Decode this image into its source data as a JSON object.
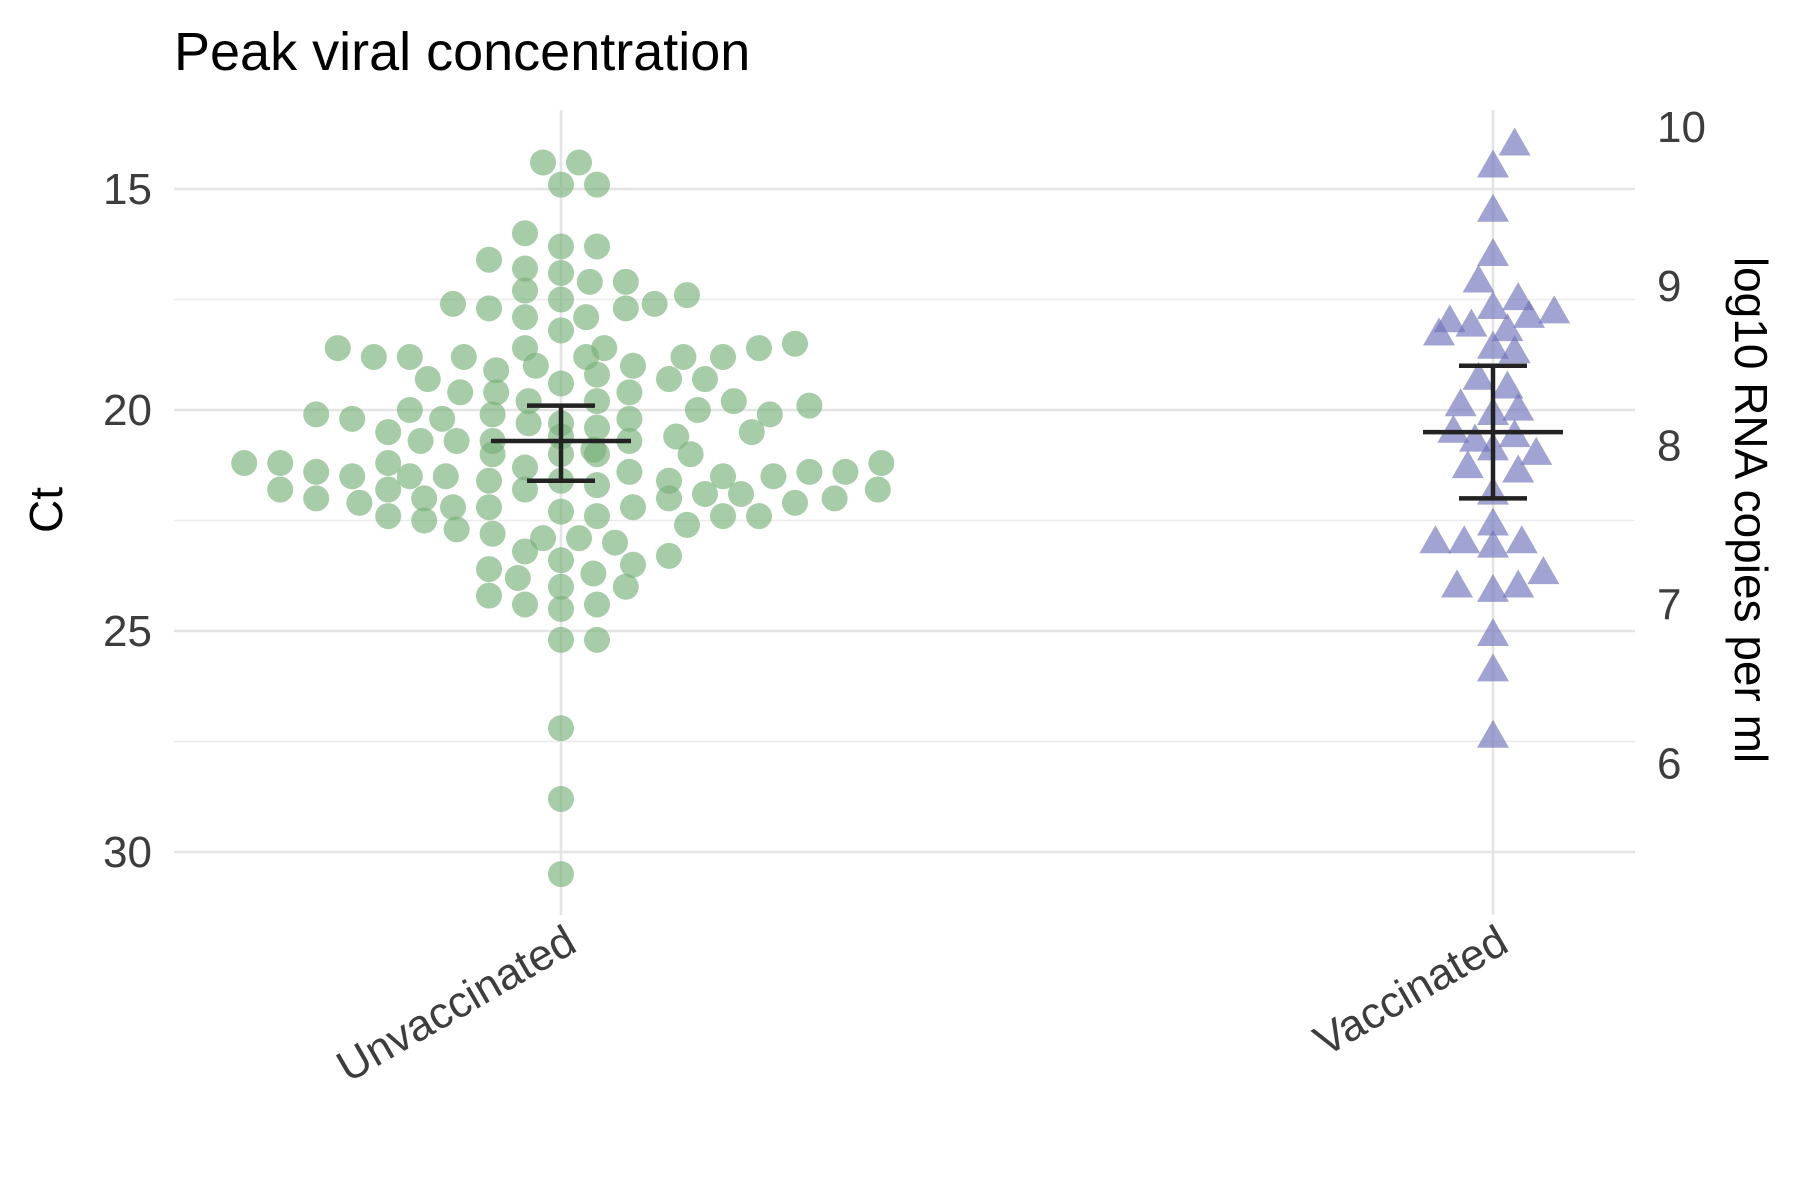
{
  "chart_data": {
    "type": "scatter",
    "title": "Peak viral concentration",
    "ylabel": "Ct",
    "y2label": "log10 RNA copies per ml",
    "categories": [
      "Unvaccinated",
      "Vaccinated"
    ],
    "ylim": [
      31.2,
      13.5
    ],
    "y_reversed": true,
    "yticks": [
      15,
      20,
      25,
      30
    ],
    "y2ticks": [
      10,
      9,
      8,
      7,
      6
    ],
    "y2_ct_equivalent": {
      "10": 13.6,
      "9": 17.2,
      "8": 20.8,
      "7": 24.4,
      "6": 28.0
    },
    "grid": true,
    "series": [
      {
        "category": "Unvaccinated",
        "marker": "circle",
        "color": "#78b17a",
        "points": [
          {
            "dx": -0.5,
            "ct": 14.4
          },
          {
            "dx": 0.5,
            "ct": 14.4
          },
          {
            "dx": 0,
            "ct": 14.9
          },
          {
            "dx": 1,
            "ct": 14.9
          },
          {
            "dx": -1,
            "ct": 16.0
          },
          {
            "dx": 0,
            "ct": 16.3
          },
          {
            "dx": 1,
            "ct": 16.3
          },
          {
            "dx": -2,
            "ct": 16.6
          },
          {
            "dx": -1,
            "ct": 16.8
          },
          {
            "dx": 0,
            "ct": 16.9
          },
          {
            "dx": 0.8,
            "ct": 17.1
          },
          {
            "dx": 1.8,
            "ct": 17.1
          },
          {
            "dx": -1,
            "ct": 17.3
          },
          {
            "dx": 3.5,
            "ct": 17.4
          },
          {
            "dx": 0,
            "ct": 17.5
          },
          {
            "dx": -3,
            "ct": 17.6
          },
          {
            "dx": 2.6,
            "ct": 17.6
          },
          {
            "dx": -2,
            "ct": 17.7
          },
          {
            "dx": 1.8,
            "ct": 17.7
          },
          {
            "dx": -1,
            "ct": 17.9
          },
          {
            "dx": 0.7,
            "ct": 17.9
          },
          {
            "dx": 0,
            "ct": 18.2
          },
          {
            "dx": 6.5,
            "ct": 18.5
          },
          {
            "dx": -6.2,
            "ct": 18.6
          },
          {
            "dx": -1,
            "ct": 18.6
          },
          {
            "dx": 1.2,
            "ct": 18.6
          },
          {
            "dx": 5.5,
            "ct": 18.6
          },
          {
            "dx": -5.2,
            "ct": 18.8
          },
          {
            "dx": -4.2,
            "ct": 18.8
          },
          {
            "dx": -2.7,
            "ct": 18.8
          },
          {
            "dx": 0.7,
            "ct": 18.8
          },
          {
            "dx": 3.4,
            "ct": 18.8
          },
          {
            "dx": 4.5,
            "ct": 18.8
          },
          {
            "dx": -0.7,
            "ct": 19.0
          },
          {
            "dx": 2.0,
            "ct": 19.0
          },
          {
            "dx": -1.8,
            "ct": 19.1
          },
          {
            "dx": 1.0,
            "ct": 19.2
          },
          {
            "dx": -3.7,
            "ct": 19.3
          },
          {
            "dx": 3.0,
            "ct": 19.3
          },
          {
            "dx": 4.0,
            "ct": 19.3
          },
          {
            "dx": 0,
            "ct": 19.4
          },
          {
            "dx": -2.8,
            "ct": 19.6
          },
          {
            "dx": -1.8,
            "ct": 19.6
          },
          {
            "dx": 1.9,
            "ct": 19.6
          },
          {
            "dx": -0.9,
            "ct": 19.8
          },
          {
            "dx": 1.0,
            "ct": 19.8
          },
          {
            "dx": 4.8,
            "ct": 19.8
          },
          {
            "dx": 6.9,
            "ct": 19.9
          },
          {
            "dx": 3.8,
            "ct": 20.0
          },
          {
            "dx": -4.2,
            "ct": 20.0
          },
          {
            "dx": -6.8,
            "ct": 20.1
          },
          {
            "dx": 5.8,
            "ct": 20.1
          },
          {
            "dx": -1.9,
            "ct": 20.1
          },
          {
            "dx": -5.8,
            "ct": 20.2
          },
          {
            "dx": -3.3,
            "ct": 20.2
          },
          {
            "dx": 1.9,
            "ct": 20.2
          },
          {
            "dx": -0.9,
            "ct": 20.3
          },
          {
            "dx": 0,
            "ct": 20.3
          },
          {
            "dx": 1.0,
            "ct": 20.4
          },
          {
            "dx": -4.8,
            "ct": 20.5
          },
          {
            "dx": 5.3,
            "ct": 20.5
          },
          {
            "dx": 3.2,
            "ct": 20.6
          },
          {
            "dx": 0,
            "ct": 20.6
          },
          {
            "dx": -3.9,
            "ct": 20.7
          },
          {
            "dx": -2.9,
            "ct": 20.7
          },
          {
            "dx": -1.9,
            "ct": 20.7
          },
          {
            "dx": 1.9,
            "ct": 20.7
          },
          {
            "dx": 0.9,
            "ct": 20.9
          },
          {
            "dx": -1.9,
            "ct": 21.0
          },
          {
            "dx": 0,
            "ct": 21.0
          },
          {
            "dx": 1.0,
            "ct": 21.0
          },
          {
            "dx": 3.6,
            "ct": 21.0
          },
          {
            "dx": -8.8,
            "ct": 21.2
          },
          {
            "dx": -7.8,
            "ct": 21.2
          },
          {
            "dx": -4.8,
            "ct": 21.2
          },
          {
            "dx": 8.9,
            "ct": 21.2
          },
          {
            "dx": -1.0,
            "ct": 21.3
          },
          {
            "dx": 1.9,
            "ct": 21.4
          },
          {
            "dx": -6.8,
            "ct": 21.4
          },
          {
            "dx": 7.9,
            "ct": 21.4
          },
          {
            "dx": 6.9,
            "ct": 21.4
          },
          {
            "dx": 5.9,
            "ct": 21.5
          },
          {
            "dx": 4.5,
            "ct": 21.5
          },
          {
            "dx": -5.8,
            "ct": 21.5
          },
          {
            "dx": -4.2,
            "ct": 21.5
          },
          {
            "dx": -3.2,
            "ct": 21.5
          },
          {
            "dx": -2.0,
            "ct": 21.6
          },
          {
            "dx": 0,
            "ct": 21.6
          },
          {
            "dx": 3.0,
            "ct": 21.6
          },
          {
            "dx": 1.0,
            "ct": 21.7
          },
          {
            "dx": -7.8,
            "ct": 21.8
          },
          {
            "dx": 8.8,
            "ct": 21.8
          },
          {
            "dx": -4.8,
            "ct": 21.8
          },
          {
            "dx": -1.0,
            "ct": 21.8
          },
          {
            "dx": 4.0,
            "ct": 21.9
          },
          {
            "dx": 5.0,
            "ct": 21.9
          },
          {
            "dx": -6.8,
            "ct": 22.0
          },
          {
            "dx": 7.6,
            "ct": 22.0
          },
          {
            "dx": -3.8,
            "ct": 22.0
          },
          {
            "dx": 3.0,
            "ct": 22.0
          },
          {
            "dx": 6.5,
            "ct": 22.1
          },
          {
            "dx": -5.6,
            "ct": 22.1
          },
          {
            "dx": -3.0,
            "ct": 22.2
          },
          {
            "dx": 2.0,
            "ct": 22.2
          },
          {
            "dx": -2.0,
            "ct": 22.2
          },
          {
            "dx": 0,
            "ct": 22.3
          },
          {
            "dx": 1.0,
            "ct": 22.4
          },
          {
            "dx": 4.5,
            "ct": 22.4
          },
          {
            "dx": 5.5,
            "ct": 22.4
          },
          {
            "dx": -4.8,
            "ct": 22.4
          },
          {
            "dx": -3.8,
            "ct": 22.5
          },
          {
            "dx": 3.5,
            "ct": 22.6
          },
          {
            "dx": -2.9,
            "ct": 22.7
          },
          {
            "dx": -1.9,
            "ct": 22.8
          },
          {
            "dx": 0.5,
            "ct": 22.9
          },
          {
            "dx": -0.5,
            "ct": 22.9
          },
          {
            "dx": 1.5,
            "ct": 23.0
          },
          {
            "dx": -1.0,
            "ct": 23.2
          },
          {
            "dx": 3.0,
            "ct": 23.3
          },
          {
            "dx": 0,
            "ct": 23.4
          },
          {
            "dx": 2.0,
            "ct": 23.5
          },
          {
            "dx": -2.0,
            "ct": 23.6
          },
          {
            "dx": 0.9,
            "ct": 23.7
          },
          {
            "dx": -1.2,
            "ct": 23.8
          },
          {
            "dx": 0,
            "ct": 24.0
          },
          {
            "dx": 1.8,
            "ct": 24.0
          },
          {
            "dx": -2.0,
            "ct": 24.2
          },
          {
            "dx": -1.0,
            "ct": 24.4
          },
          {
            "dx": 1.0,
            "ct": 24.4
          },
          {
            "dx": 0,
            "ct": 24.5
          },
          {
            "dx": 0,
            "ct": 25.2
          },
          {
            "dx": 1.0,
            "ct": 25.2
          },
          {
            "dx": 0,
            "ct": 27.2
          },
          {
            "dx": 0,
            "ct": 28.8
          },
          {
            "dx": 0,
            "ct": 30.5
          }
        ],
        "summary": {
          "center": 20.7,
          "low": 19.9,
          "high": 21.6
        }
      },
      {
        "category": "Vaccinated",
        "marker": "triangle",
        "color": "#6f73ba",
        "points": [
          {
            "dx": 0.6,
            "ct": 14.0
          },
          {
            "dx": 0,
            "ct": 14.5
          },
          {
            "dx": 0,
            "ct": 15.5
          },
          {
            "dx": 0,
            "ct": 16.5
          },
          {
            "dx": -0.4,
            "ct": 17.1
          },
          {
            "dx": 0,
            "ct": 17.7
          },
          {
            "dx": 0.7,
            "ct": 17.5
          },
          {
            "dx": -1.2,
            "ct": 18.0
          },
          {
            "dx": -0.6,
            "ct": 18.1
          },
          {
            "dx": 0.4,
            "ct": 18.2
          },
          {
            "dx": 1.0,
            "ct": 17.9
          },
          {
            "dx": 1.7,
            "ct": 17.8
          },
          {
            "dx": -1.5,
            "ct": 18.3
          },
          {
            "dx": 0,
            "ct": 18.6
          },
          {
            "dx": 0.6,
            "ct": 18.7
          },
          {
            "dx": -0.4,
            "ct": 19.3
          },
          {
            "dx": 0.4,
            "ct": 19.5
          },
          {
            "dx": -0.9,
            "ct": 19.9
          },
          {
            "dx": 0,
            "ct": 20.1
          },
          {
            "dx": 0.7,
            "ct": 20.0
          },
          {
            "dx": -1.1,
            "ct": 20.5
          },
          {
            "dx": -0.5,
            "ct": 20.7
          },
          {
            "dx": 0.6,
            "ct": 20.6
          },
          {
            "dx": 0,
            "ct": 20.9
          },
          {
            "dx": 1.2,
            "ct": 21.0
          },
          {
            "dx": -0.7,
            "ct": 21.3
          },
          {
            "dx": 0.7,
            "ct": 21.4
          },
          {
            "dx": 0,
            "ct": 21.9
          },
          {
            "dx": 0,
            "ct": 22.6
          },
          {
            "dx": -1.6,
            "ct": 23.0
          },
          {
            "dx": -0.8,
            "ct": 23.0
          },
          {
            "dx": 0,
            "ct": 23.1
          },
          {
            "dx": 0.8,
            "ct": 23.0
          },
          {
            "dx": -1.0,
            "ct": 24.0
          },
          {
            "dx": 0,
            "ct": 24.1
          },
          {
            "dx": 0.7,
            "ct": 24.0
          },
          {
            "dx": 1.4,
            "ct": 23.7
          },
          {
            "dx": 0,
            "ct": 25.1
          },
          {
            "dx": 0,
            "ct": 25.9
          },
          {
            "dx": 0,
            "ct": 27.4
          }
        ],
        "summary": {
          "center": 20.5,
          "low": 19.0,
          "high": 22.0
        }
      }
    ]
  }
}
